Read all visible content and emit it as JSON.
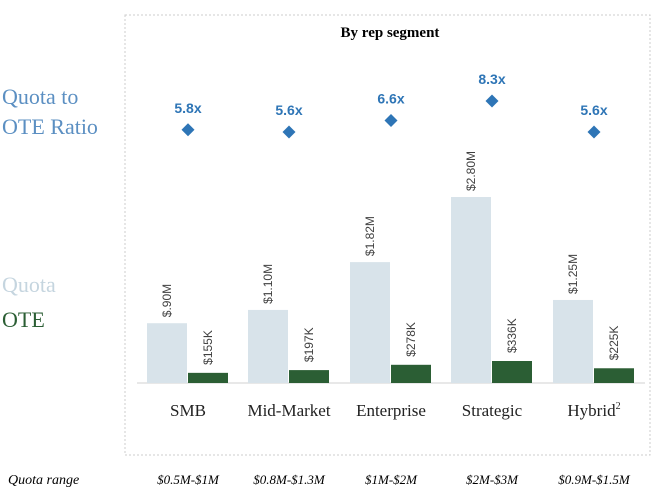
{
  "title": "By rep segment",
  "legend": {
    "ratio_line1": "Quota to",
    "ratio_line2": "OTE Ratio",
    "quota": "Quota",
    "ote": "OTE"
  },
  "quota_range_label": "Quota range",
  "colors": {
    "quota": "#d8e3ea",
    "ote": "#2b5e34",
    "ratio": "#2e75b6",
    "ratio_legend": "#5b8fc2",
    "quota_legend": "#c5d5df",
    "ote_legend": "#2b5e34",
    "text": "#404040",
    "frame": "#cccccc"
  },
  "chart_data": {
    "type": "bar",
    "title": "By rep segment",
    "categories": [
      "SMB",
      "Mid-Market",
      "Enterprise",
      "Strategic",
      "Hybrid"
    ],
    "category_superscripts": [
      "",
      "",
      "",
      "",
      "2"
    ],
    "series": [
      {
        "name": "Quota",
        "unit": "$M",
        "values": [
          0.9,
          1.1,
          1.82,
          2.8,
          1.25
        ],
        "labels": [
          "$.90M",
          "$1.10M",
          "$1.82M",
          "$2.80M",
          "$1.25M"
        ]
      },
      {
        "name": "OTE",
        "unit": "$K",
        "values": [
          155,
          197,
          278,
          336,
          225
        ],
        "labels": [
          "$155K",
          "$197K",
          "$278K",
          "$336K",
          "$225K"
        ]
      },
      {
        "name": "Quota to OTE Ratio",
        "type": "scatter",
        "values": [
          5.8,
          5.6,
          6.6,
          8.3,
          5.6
        ],
        "labels": [
          "5.8x",
          "5.6x",
          "6.6x",
          "8.3x",
          "5.6x"
        ]
      }
    ],
    "quota_ranges": [
      "$0.5M-$1M",
      "$0.8M-$1.3M",
      "$1M-$2M",
      "$2M-$3M",
      "$0.9M-$1.5M"
    ],
    "grid": false
  }
}
